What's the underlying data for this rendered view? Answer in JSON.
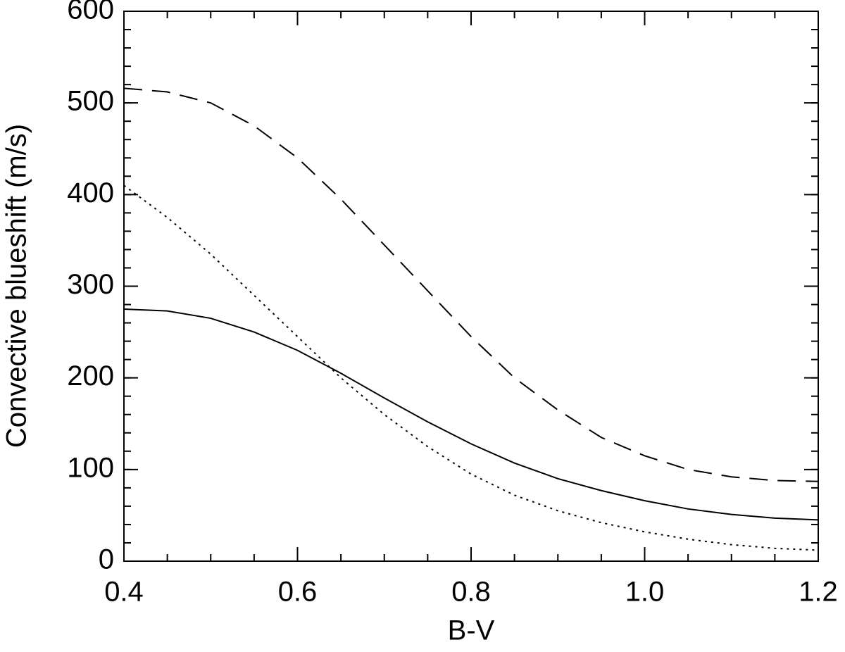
{
  "chart_data": {
    "type": "line",
    "x_label": "B-V",
    "y_label": "Convective blueshift (m/s)",
    "x": [
      0.4,
      0.45,
      0.5,
      0.55,
      0.6,
      0.65,
      0.7,
      0.75,
      0.8,
      0.85,
      0.9,
      0.95,
      1.0,
      1.05,
      1.1,
      1.15,
      1.2
    ],
    "series": [
      {
        "color": "#000000",
        "dash": "solid",
        "values": [
          275,
          273,
          265,
          250,
          230,
          205,
          178,
          152,
          128,
          107,
          90,
          77,
          66,
          57,
          51,
          47,
          45
        ]
      },
      {
        "color": "#000000",
        "dash": "dotted",
        "values": [
          410,
          375,
          335,
          290,
          245,
          200,
          160,
          125,
          95,
          72,
          55,
          42,
          32,
          24,
          18,
          14,
          12
        ]
      },
      {
        "color": "#000000",
        "dash": "dashed",
        "values": [
          516,
          512,
          500,
          475,
          440,
          395,
          345,
          295,
          245,
          200,
          165,
          135,
          115,
          100,
          92,
          88,
          87
        ]
      }
    ],
    "xlim": [
      0.4,
      1.2
    ],
    "ylim": [
      0,
      600
    ],
    "xticks": [
      0.4,
      0.6,
      0.8,
      {
        "value": 1,
        "label": "1.0"
      },
      1.2
    ],
    "yticks": [
      0,
      100,
      200,
      300,
      400,
      500,
      600
    ],
    "xminor": 0.05,
    "yminor": 20,
    "grid": false
  }
}
